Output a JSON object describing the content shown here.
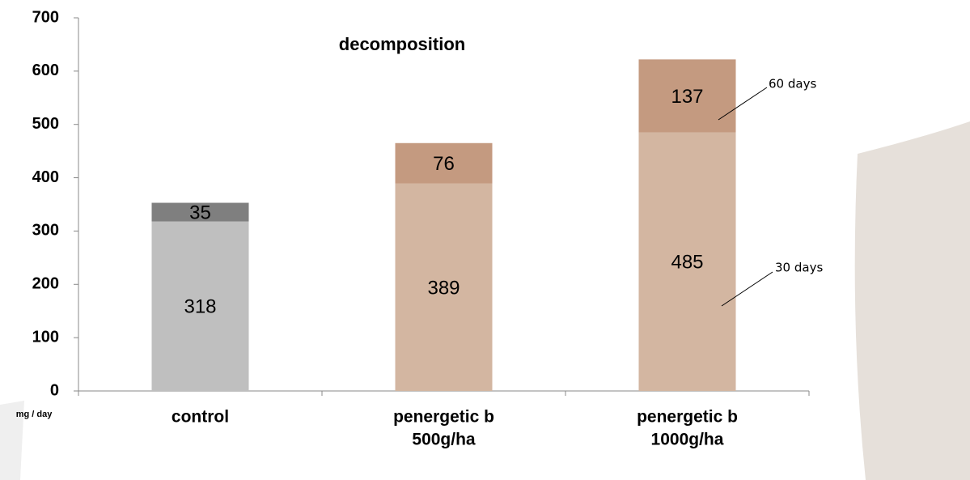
{
  "chart_data": {
    "type": "stacked_bar",
    "title": "decomposition",
    "y_label": "mg / day",
    "categories": [
      [
        "control"
      ],
      [
        "penergetic b",
        "500g/ha"
      ],
      [
        "penergetic b",
        "1000g/ha"
      ]
    ],
    "series": [
      {
        "name": "30 days",
        "colors": [
          "#bfbfbf",
          "#d3b6a1",
          "#d3b6a1"
        ],
        "values": [
          318,
          389,
          485
        ]
      },
      {
        "name": "60 days",
        "colors": [
          "#7f7f7f",
          "#c49a80",
          "#c49a80"
        ],
        "values": [
          35,
          76,
          137
        ]
      }
    ],
    "ylim": [
      0,
      700
    ],
    "yticks": [
      0,
      100,
      200,
      300,
      400,
      500,
      600,
      700
    ]
  }
}
